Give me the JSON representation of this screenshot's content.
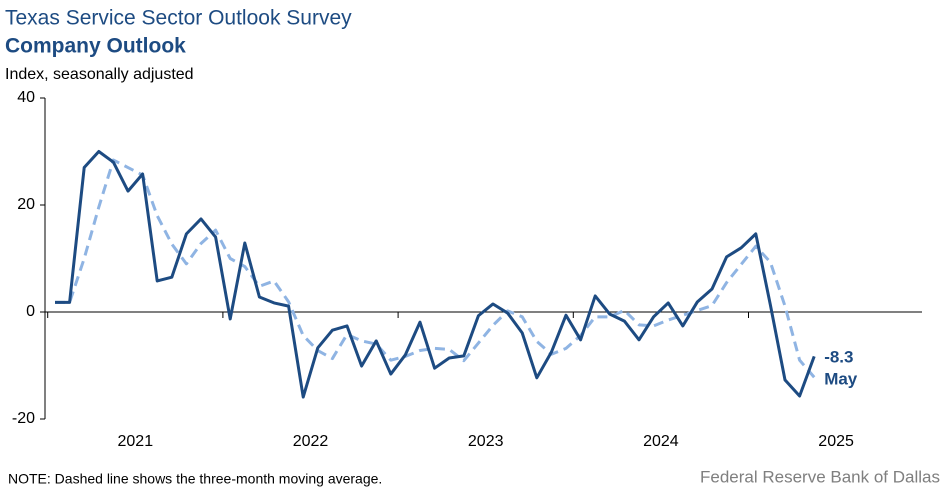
{
  "chart_data": {
    "type": "line",
    "title": "Texas Service Sector Outlook Survey",
    "subtitle": "Company Outlook",
    "y_label": "Index, seasonally adjusted",
    "note": "NOTE: Dashed line shows the three-month  moving average.",
    "source": "Federal Reserve Bank of Dallas",
    "annotation": "May",
    "year_labels": [
      "2021",
      "2022",
      "2023",
      "2024",
      "2025"
    ],
    "ylim": [
      -20,
      40
    ],
    "yticks": [
      -20,
      0,
      20,
      40
    ],
    "series": [
      {
        "color": "#1d4b82",
        "dashed": false,
        "values": [
          1.8,
          1.8,
          27,
          30,
          28,
          22.6,
          25.8,
          5.8,
          6.5,
          14.6,
          17.4,
          14,
          -1.3,
          12.9,
          2.8,
          1.7,
          1.1,
          -15.9,
          -6.7,
          -3.4,
          -2.6,
          -10.1,
          -5.4,
          -11.6,
          -8,
          -1.9,
          -10.5,
          -8.6,
          -8.2,
          -0.7,
          1.5,
          -0.2,
          -3.9,
          -12.3,
          -7.5,
          -0.6,
          -5.2,
          3,
          -0.4,
          -1.7,
          -5.2,
          -0.9,
          1.7,
          -2.6,
          1.9,
          4.3,
          10.3,
          12,
          14.6,
          1.3,
          -12.7,
          -15.7,
          -8.3
        ]
      },
      {
        "color": "#8fb4e3",
        "dashed": true,
        "values": [
          1.8,
          1.8,
          10,
          19.6,
          28.4,
          27,
          25.6,
          18,
          12.7,
          9,
          12.8,
          15.3,
          10,
          8.5,
          4.8,
          5.8,
          1.9,
          -4.4,
          -7.2,
          -8.7,
          -4.2,
          -5.4,
          -6,
          -9,
          -8.3,
          -7.2,
          -6.8,
          -7,
          -9.1,
          -5.8,
          -2.5,
          0.2,
          -0.9,
          -5.5,
          -7.9,
          -6.8,
          -4.4,
          -0.9,
          -0.9,
          0.3,
          -2.4,
          -2.6,
          -1.5,
          -0.6,
          0.3,
          1.2,
          5.5,
          8.9,
          12.3,
          9.3,
          1.1,
          -9,
          -12.2
        ]
      }
    ]
  }
}
